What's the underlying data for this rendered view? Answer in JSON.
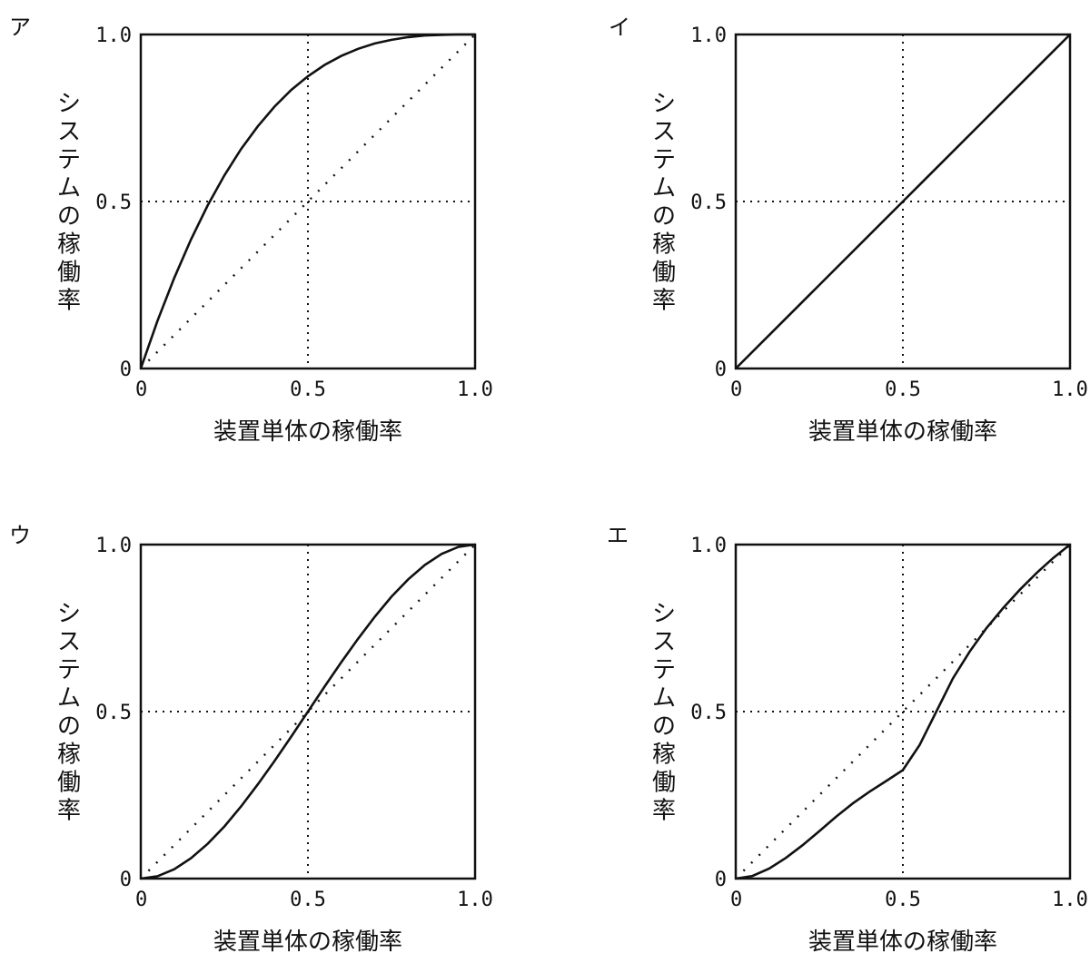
{
  "chart_data": [
    {
      "type": "line",
      "panel_label": "ア",
      "xlabel": "装置単体の稼働率",
      "ylabel": "システムの稼働率",
      "xlim": [
        0,
        1
      ],
      "ylim": [
        0,
        1
      ],
      "x_ticks": [
        "0",
        "0.5",
        "1.0"
      ],
      "y_ticks": [
        "0",
        "0.5",
        "1.0"
      ],
      "grid": false,
      "reference_lines": {
        "x": 0.5,
        "y": 0.5,
        "diagonal": true
      },
      "x": [
        0,
        0.05,
        0.1,
        0.15,
        0.2,
        0.25,
        0.3,
        0.35,
        0.4,
        0.45,
        0.5,
        0.55,
        0.6,
        0.65,
        0.7,
        0.75,
        0.8,
        0.85,
        0.9,
        0.95,
        1.0
      ],
      "series": [
        {
          "values": [
            0,
            0.143,
            0.271,
            0.386,
            0.488,
            0.578,
            0.657,
            0.725,
            0.784,
            0.834,
            0.875,
            0.909,
            0.936,
            0.957,
            0.973,
            0.984,
            0.992,
            0.997,
            0.999,
            1.0,
            1.0
          ]
        }
      ]
    },
    {
      "type": "line",
      "panel_label": "イ",
      "xlabel": "装置単体の稼働率",
      "ylabel": "システムの稼働率",
      "xlim": [
        0,
        1
      ],
      "ylim": [
        0,
        1
      ],
      "x_ticks": [
        "0",
        "0.5",
        "1.0"
      ],
      "y_ticks": [
        "0",
        "0.5",
        "1.0"
      ],
      "grid": false,
      "reference_lines": {
        "x": 0.5,
        "y": 0.5,
        "diagonal": false
      },
      "x": [
        0,
        0.25,
        0.5,
        0.75,
        1.0
      ],
      "series": [
        {
          "values": [
            0,
            0.25,
            0.5,
            0.75,
            1.0
          ]
        }
      ]
    },
    {
      "type": "line",
      "panel_label": "ウ",
      "xlabel": "装置単体の稼働率",
      "ylabel": "システムの稼働率",
      "xlim": [
        0,
        1
      ],
      "ylim": [
        0,
        1
      ],
      "x_ticks": [
        "0",
        "0.5",
        "1.0"
      ],
      "y_ticks": [
        "0",
        "0.5",
        "1.0"
      ],
      "grid": false,
      "reference_lines": {
        "x": 0.5,
        "y": 0.5,
        "diagonal": true
      },
      "x": [
        0,
        0.05,
        0.1,
        0.15,
        0.2,
        0.25,
        0.3,
        0.35,
        0.4,
        0.45,
        0.5,
        0.55,
        0.6,
        0.65,
        0.7,
        0.75,
        0.8,
        0.85,
        0.9,
        0.95,
        1.0
      ],
      "series": [
        {
          "values": [
            0,
            0.007,
            0.028,
            0.061,
            0.104,
            0.156,
            0.216,
            0.282,
            0.352,
            0.425,
            0.5,
            0.575,
            0.648,
            0.718,
            0.784,
            0.844,
            0.896,
            0.939,
            0.972,
            0.993,
            1.0
          ]
        }
      ]
    },
    {
      "type": "line",
      "panel_label": "エ",
      "xlabel": "装置単体の稼働率",
      "ylabel": "システムの稼働率",
      "xlim": [
        0,
        1
      ],
      "ylim": [
        0,
        1
      ],
      "x_ticks": [
        "0",
        "0.5",
        "1.0"
      ],
      "y_ticks": [
        "0",
        "0.5",
        "1.0"
      ],
      "grid": false,
      "reference_lines": {
        "x": 0.5,
        "y": 0.5,
        "diagonal": true
      },
      "x": [
        0,
        0.05,
        0.1,
        0.15,
        0.2,
        0.25,
        0.3,
        0.35,
        0.4,
        0.45,
        0.5,
        0.55,
        0.6,
        0.65,
        0.7,
        0.75,
        0.8,
        0.85,
        0.9,
        0.95,
        1.0
      ],
      "series": [
        {
          "values": [
            0,
            0.008,
            0.03,
            0.062,
            0.1,
            0.142,
            0.185,
            0.225,
            0.26,
            0.292,
            0.325,
            0.4,
            0.5,
            0.6,
            0.68,
            0.75,
            0.81,
            0.865,
            0.915,
            0.96,
            1.0
          ]
        }
      ]
    }
  ]
}
